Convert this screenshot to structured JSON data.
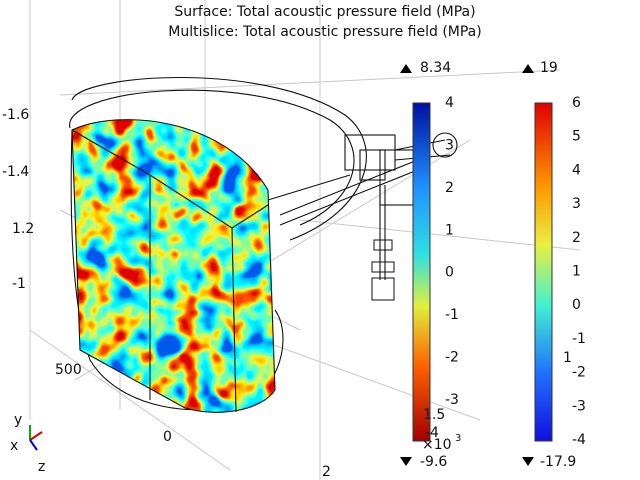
{
  "titles": [
    "Surface: Total acoustic pressure field (MPa)",
    "Multislice: Total acoustic pressure field (MPa)"
  ],
  "colorbars": [
    {
      "max": "8.34",
      "min": "-9.6",
      "ticks": [
        4,
        3,
        2,
        1,
        0,
        -1,
        -2,
        -3
      ]
    },
    {
      "max": "19",
      "min": "-17.9",
      "ticks": [
        6,
        5,
        4,
        3,
        2,
        1,
        0,
        -1,
        -2,
        -3,
        -4
      ]
    }
  ],
  "overlay_labels": [
    "1.5",
    "×10",
    "3",
    "1",
    "-4"
  ],
  "axis_labels": [
    "-1.6",
    "-1.4",
    "1.2",
    "-1",
    "500",
    "0",
    "2"
  ],
  "triad": [
    "x",
    "y",
    "z"
  ]
}
